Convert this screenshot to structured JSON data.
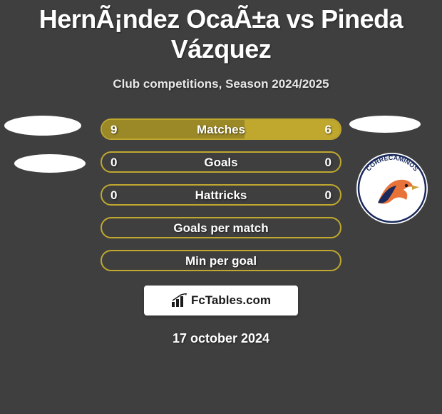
{
  "title": "HernÃ¡ndez OcaÃ±a vs Pineda Vázquez",
  "subtitle": "Club competitions, Season 2024/2025",
  "date": "17 october 2024",
  "footer_brand": "FcTables.com",
  "colors": {
    "background": "#3f3f3f",
    "pill_border": "#c0a82f",
    "fill_left": "#9b8826",
    "fill_right": "#c0a82f",
    "text": "#ffffff",
    "badge_bg": "#ffffff",
    "logo_ring": "#1a2a5c",
    "logo_orange": "#e8733a",
    "logo_navy": "#1a2a5c"
  },
  "rows": [
    {
      "label": "Matches",
      "left": "9",
      "right": "6",
      "left_pct": 60,
      "right_pct": 40
    },
    {
      "label": "Goals",
      "left": "0",
      "right": "0",
      "left_pct": 0,
      "right_pct": 0
    },
    {
      "label": "Hattricks",
      "left": "0",
      "right": "0",
      "left_pct": 0,
      "right_pct": 0
    },
    {
      "label": "Goals per match",
      "left": "",
      "right": "",
      "left_pct": 0,
      "right_pct": 0
    },
    {
      "label": "Min per goal",
      "left": "",
      "right": "",
      "left_pct": 0,
      "right_pct": 0
    }
  ],
  "right_logo_text": "CORRECAMINOS"
}
